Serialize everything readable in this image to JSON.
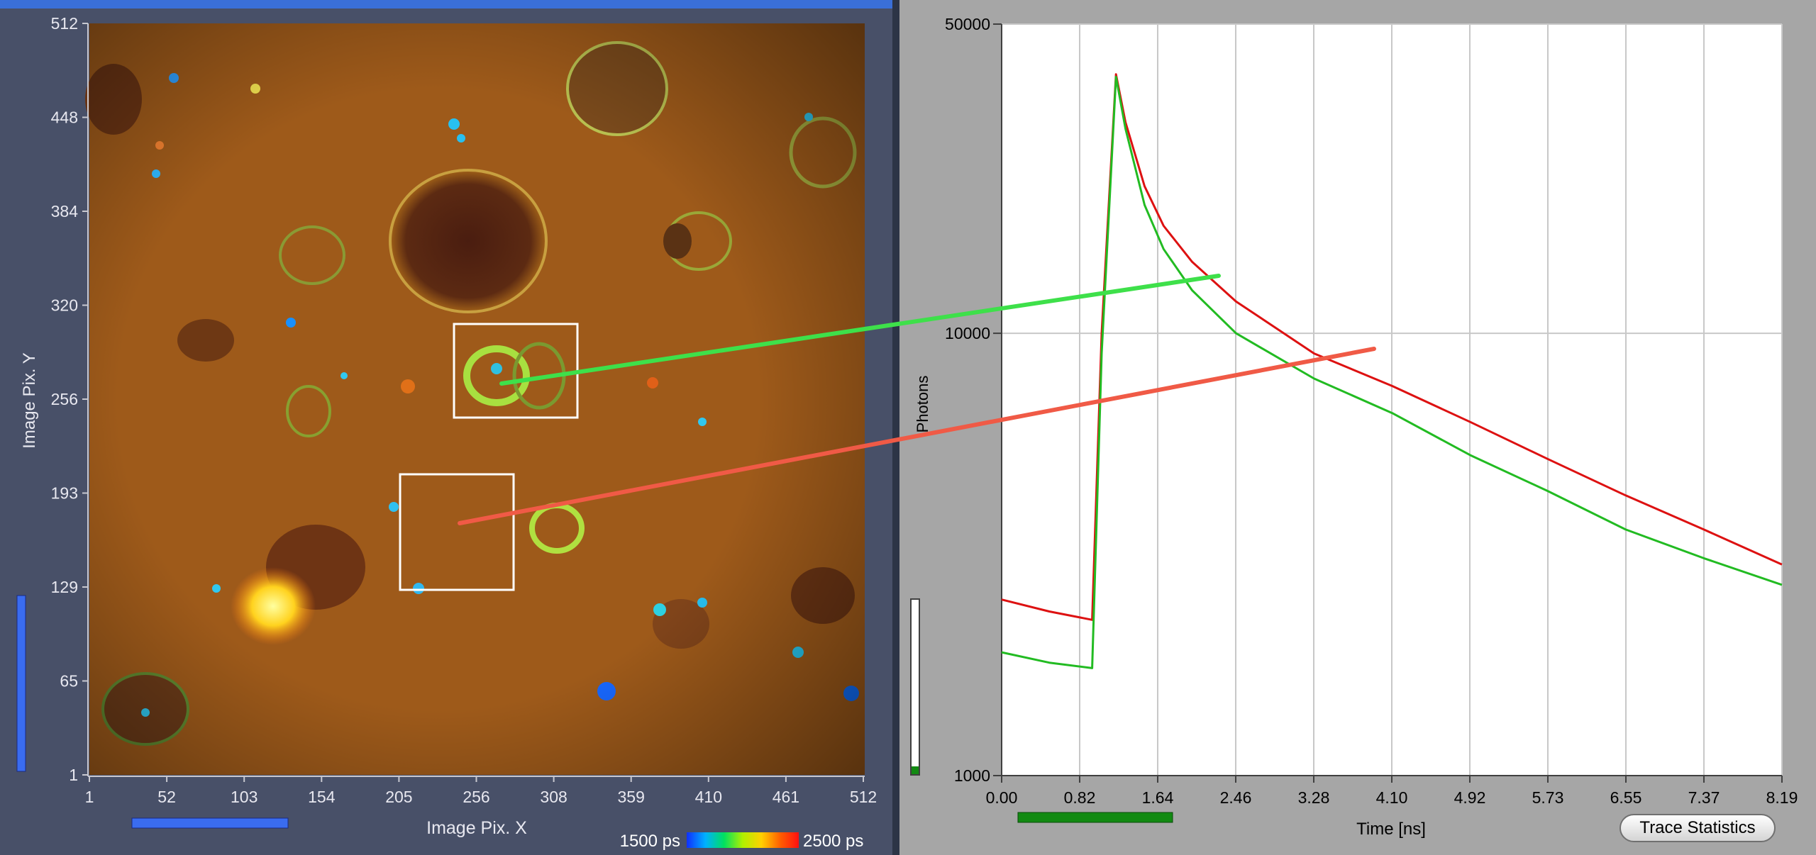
{
  "image_panel": {
    "y_axis_label": "Image Pix. Y",
    "x_axis_label": "Image Pix. X",
    "y_ticks": [
      "512",
      "448",
      "384",
      "320",
      "256",
      "193",
      "129",
      "65",
      "1"
    ],
    "x_ticks": [
      "1",
      "52",
      "103",
      "154",
      "205",
      "256",
      "308",
      "359",
      "410",
      "461",
      "512"
    ],
    "colorbar": {
      "min_label": "1500 ps",
      "max_label": "2500 ps",
      "stops": [
        "#1030ff",
        "#00b0ff",
        "#00e060",
        "#b0f000",
        "#ffd000",
        "#ff6000",
        "#ff1010"
      ]
    }
  },
  "decay_panel": {
    "y_axis_label": "Photons",
    "x_axis_label": "Time [ns]",
    "y_ticks": [
      "50000",
      "10000",
      "1000"
    ],
    "x_ticks": [
      "0.00",
      "0.82",
      "1.64",
      "2.46",
      "3.28",
      "4.10",
      "4.92",
      "5.73",
      "6.55",
      "7.37",
      "8.19"
    ],
    "trace_statistics_button": "Trace Statistics"
  },
  "colors": {
    "panel_bg": "#485068",
    "plot_outer_bg": "#a6a6a6",
    "red_trace": "#dd1111",
    "green_trace": "#22bb22",
    "green_connector": "#3ee04a",
    "red_connector": "#f05a46",
    "scroll_bar_blue": "#3a6cf0",
    "scroll_bar_green": "#128a12"
  },
  "chart_data": {
    "type": "line",
    "title": "",
    "xlabel": "Time [ns]",
    "ylabel": "Photons",
    "xlim": [
      0,
      8.19
    ],
    "ylim": [
      1000,
      50000
    ],
    "y_scale": "log",
    "grid": true,
    "series": [
      {
        "color": "#dd1111",
        "x": [
          0.0,
          0.5,
          0.95,
          1.05,
          1.2,
          1.3,
          1.5,
          1.7,
          2.0,
          2.46,
          3.28,
          4.1,
          4.92,
          5.73,
          6.55,
          7.37,
          8.19
        ],
        "y": [
          2500,
          2350,
          2250,
          10000,
          38500,
          30000,
          21500,
          17500,
          14500,
          11800,
          9000,
          7600,
          6300,
          5200,
          4300,
          3600,
          3000
        ]
      },
      {
        "color": "#22bb22",
        "x": [
          0.0,
          0.5,
          0.95,
          1.05,
          1.2,
          1.3,
          1.5,
          1.7,
          2.0,
          2.46,
          3.28,
          4.1,
          4.92,
          5.73,
          6.55,
          7.37,
          8.19
        ],
        "y": [
          1900,
          1800,
          1750,
          9000,
          38000,
          29000,
          19500,
          15500,
          12500,
          10000,
          7900,
          6600,
          5300,
          4400,
          3600,
          3100,
          2700
        ]
      }
    ]
  }
}
